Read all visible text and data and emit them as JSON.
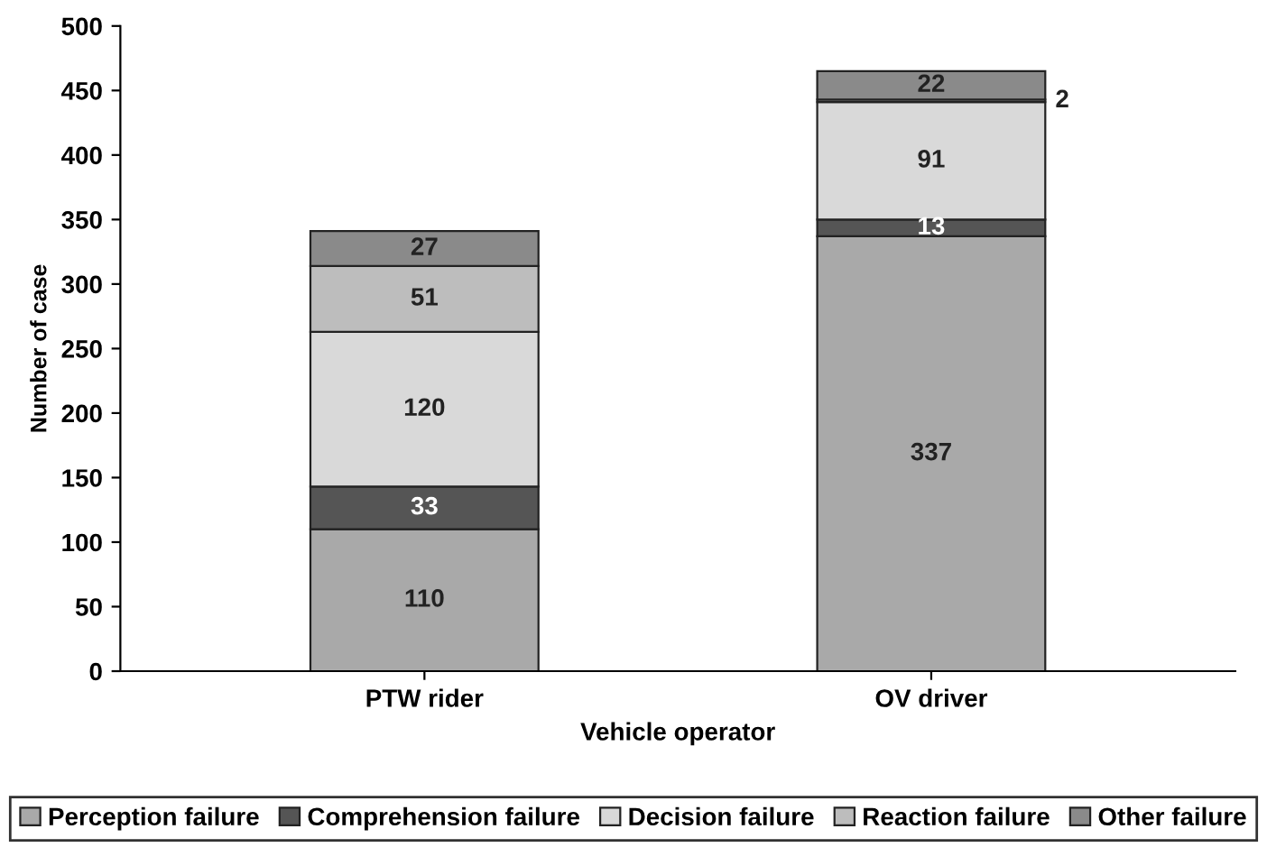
{
  "chart_data": {
    "type": "bar",
    "stacked": true,
    "xlabel": "Vehicle operator",
    "ylabel": "Number of case",
    "categories": [
      "PTW rider",
      "OV driver"
    ],
    "series": [
      {
        "name": "Perception failure",
        "color": "#a9a9a9",
        "values": [
          110,
          337
        ]
      },
      {
        "name": "Comprehension failure",
        "color": "#555555",
        "values": [
          33,
          13
        ]
      },
      {
        "name": "Decision failure",
        "color": "#d9d9d9",
        "values": [
          120,
          91
        ]
      },
      {
        "name": "Reaction failure",
        "color": "#bdbdbd",
        "values": [
          51,
          2
        ]
      },
      {
        "name": "Other failure",
        "color": "#8a8a8a",
        "values": [
          27,
          22
        ]
      }
    ],
    "ylim": [
      0,
      500
    ],
    "yticks": [
      0,
      50,
      100,
      150,
      200,
      250,
      300,
      350,
      400,
      450,
      500
    ],
    "data_labels": true,
    "legend": "bottom",
    "grid": false
  }
}
